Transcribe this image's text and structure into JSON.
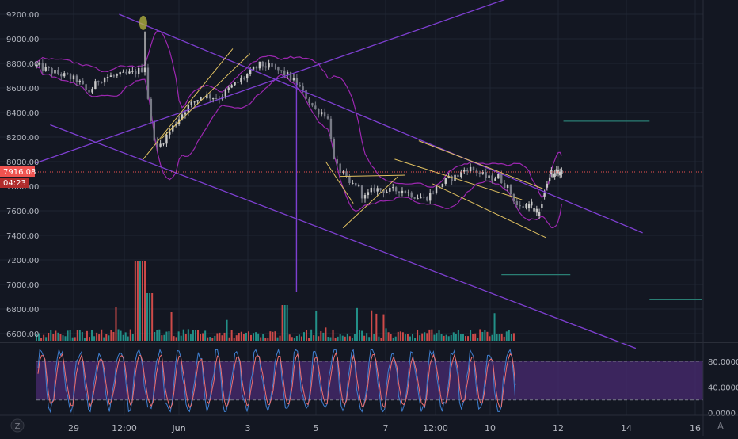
{
  "colors": {
    "background": "#131722",
    "grid": "#1f2533",
    "axis_text": "#b2b5be",
    "candle_up": "#c8c8c8",
    "candle_down": "#787b86",
    "bollinger": "#9c27b0",
    "channel": "#7e3fd1",
    "trendline": "#e0c060",
    "volume_up": "#26a69a",
    "volume_down": "#ef5350",
    "price_line": "#ef5350",
    "stoch_k": "#3f7fd0",
    "stoch_d": "#ef7070",
    "stoch_band": "#4a2b72",
    "hline": "#2a7f74",
    "highlight": "#b8b840"
  },
  "chart_data": [
    {
      "type": "candlestick",
      "title": "",
      "ylim": [
        6560,
        9280
      ],
      "y_ticks": [
        "9200.00",
        "9000.00",
        "8800.00",
        "8600.00",
        "8400.00",
        "8200.00",
        "8000.00",
        "7800.00",
        "7600.00",
        "7400.00",
        "7200.00",
        "7000.00",
        "6800.00",
        "6600.00"
      ],
      "x_ticks": [
        "29",
        "12:00",
        "Jun",
        "3",
        "5",
        "7",
        "12:00",
        "10",
        "12",
        "14",
        "16"
      ],
      "x_range": [
        0,
        14.4
      ],
      "tick_positions": [
        1,
        2,
        3,
        4,
        6,
        8,
        9,
        11,
        13,
        15,
        17
      ],
      "price_path": [
        [
          0.0,
          8780
        ],
        [
          0.4,
          8740
        ],
        [
          0.8,
          8700
        ],
        [
          1.2,
          8660
        ],
        [
          1.5,
          8560
        ],
        [
          1.8,
          8660
        ],
        [
          2.0,
          8690
        ],
        [
          2.4,
          8700
        ],
        [
          2.8,
          8720
        ],
        [
          3.05,
          8750
        ],
        [
          3.15,
          8780
        ],
        [
          3.3,
          8350
        ],
        [
          3.5,
          8100
        ],
        [
          3.9,
          8260
        ],
        [
          4.3,
          8420
        ],
        [
          4.8,
          8540
        ],
        [
          5.3,
          8520
        ],
        [
          5.7,
          8620
        ],
        [
          6.1,
          8700
        ],
        [
          6.5,
          8790
        ],
        [
          6.9,
          8760
        ],
        [
          7.3,
          8700
        ],
        [
          7.55,
          8640
        ],
        [
          7.8,
          8540
        ],
        [
          8.1,
          8420
        ],
        [
          8.35,
          8400
        ],
        [
          8.5,
          8320
        ],
        [
          8.65,
          7980
        ],
        [
          8.9,
          7900
        ],
        [
          9.1,
          7810
        ],
        [
          9.3,
          7820
        ],
        [
          9.5,
          7700
        ],
        [
          9.8,
          7780
        ],
        [
          10.2,
          7760
        ],
        [
          10.6,
          7770
        ],
        [
          11.0,
          7720
        ],
        [
          11.3,
          7700
        ],
        [
          11.6,
          7780
        ],
        [
          11.9,
          7850
        ],
        [
          12.2,
          7880
        ],
        [
          12.5,
          7950
        ],
        [
          12.8,
          7920
        ],
        [
          13.1,
          7860
        ],
        [
          13.4,
          7880
        ],
        [
          13.7,
          7780
        ],
        [
          14.0,
          7620
        ],
        [
          14.3,
          7660
        ]
      ],
      "price_extension": [
        [
          14.3,
          7660
        ],
        [
          14.6,
          7560
        ],
        [
          14.9,
          7880
        ],
        [
          15.1,
          7930
        ],
        [
          15.3,
          7916
        ]
      ],
      "current_price": 7916.08,
      "countdown": "04:23",
      "spikes": [
        [
          3.15,
          9060
        ],
        [
          7.55,
          6940
        ]
      ],
      "drawings": {
        "channel_lines": [
          [
            [
              2.4,
              9200
            ],
            [
              17.6,
              7420
            ]
          ],
          [
            [
              0.4,
              8300
            ],
            [
              17.4,
              6480
            ]
          ],
          [
            [
              0.0,
              7990
            ],
            [
              13.6,
              9320
            ]
          ]
        ],
        "yellow_lines": [
          [
            [
              3.1,
              8020
            ],
            [
              5.7,
              8920
            ]
          ],
          [
            [
              3.6,
              8180
            ],
            [
              6.2,
              8880
            ]
          ],
          [
            [
              8.4,
              8000
            ],
            [
              9.2,
              7660
            ]
          ],
          [
            [
              8.8,
              7880
            ],
            [
              10.7,
              7890
            ]
          ],
          [
            [
              8.9,
              7460
            ],
            [
              10.5,
              7880
            ]
          ],
          [
            [
              10.4,
              8020
            ],
            [
              14.1,
              7690
            ]
          ],
          [
            [
              11.1,
              8170
            ],
            [
              14.7,
              7780
            ]
          ],
          [
            [
              11.5,
              7820
            ],
            [
              14.8,
              7380
            ]
          ]
        ],
        "horizontal_segments": [
          [
            [
              15.3,
              8330
            ],
            [
              17.8,
              8330
            ]
          ],
          [
            [
              13.5,
              7080
            ],
            [
              15.5,
              7080
            ]
          ],
          [
            [
              17.8,
              6880
            ],
            [
              19.4,
              6880
            ]
          ]
        ],
        "highlight": [
          3.1,
          9130
        ]
      }
    },
    {
      "type": "line",
      "title": "",
      "ylim": [
        0,
        100
      ],
      "y_ticks": [
        "80.0000",
        "40.0000",
        "0.0000"
      ],
      "band": [
        20,
        80
      ],
      "series": [
        {
          "values": []
        },
        {
          "values": []
        }
      ]
    }
  ],
  "axis_badges": {
    "z_button": "Z",
    "a_button": "A"
  }
}
